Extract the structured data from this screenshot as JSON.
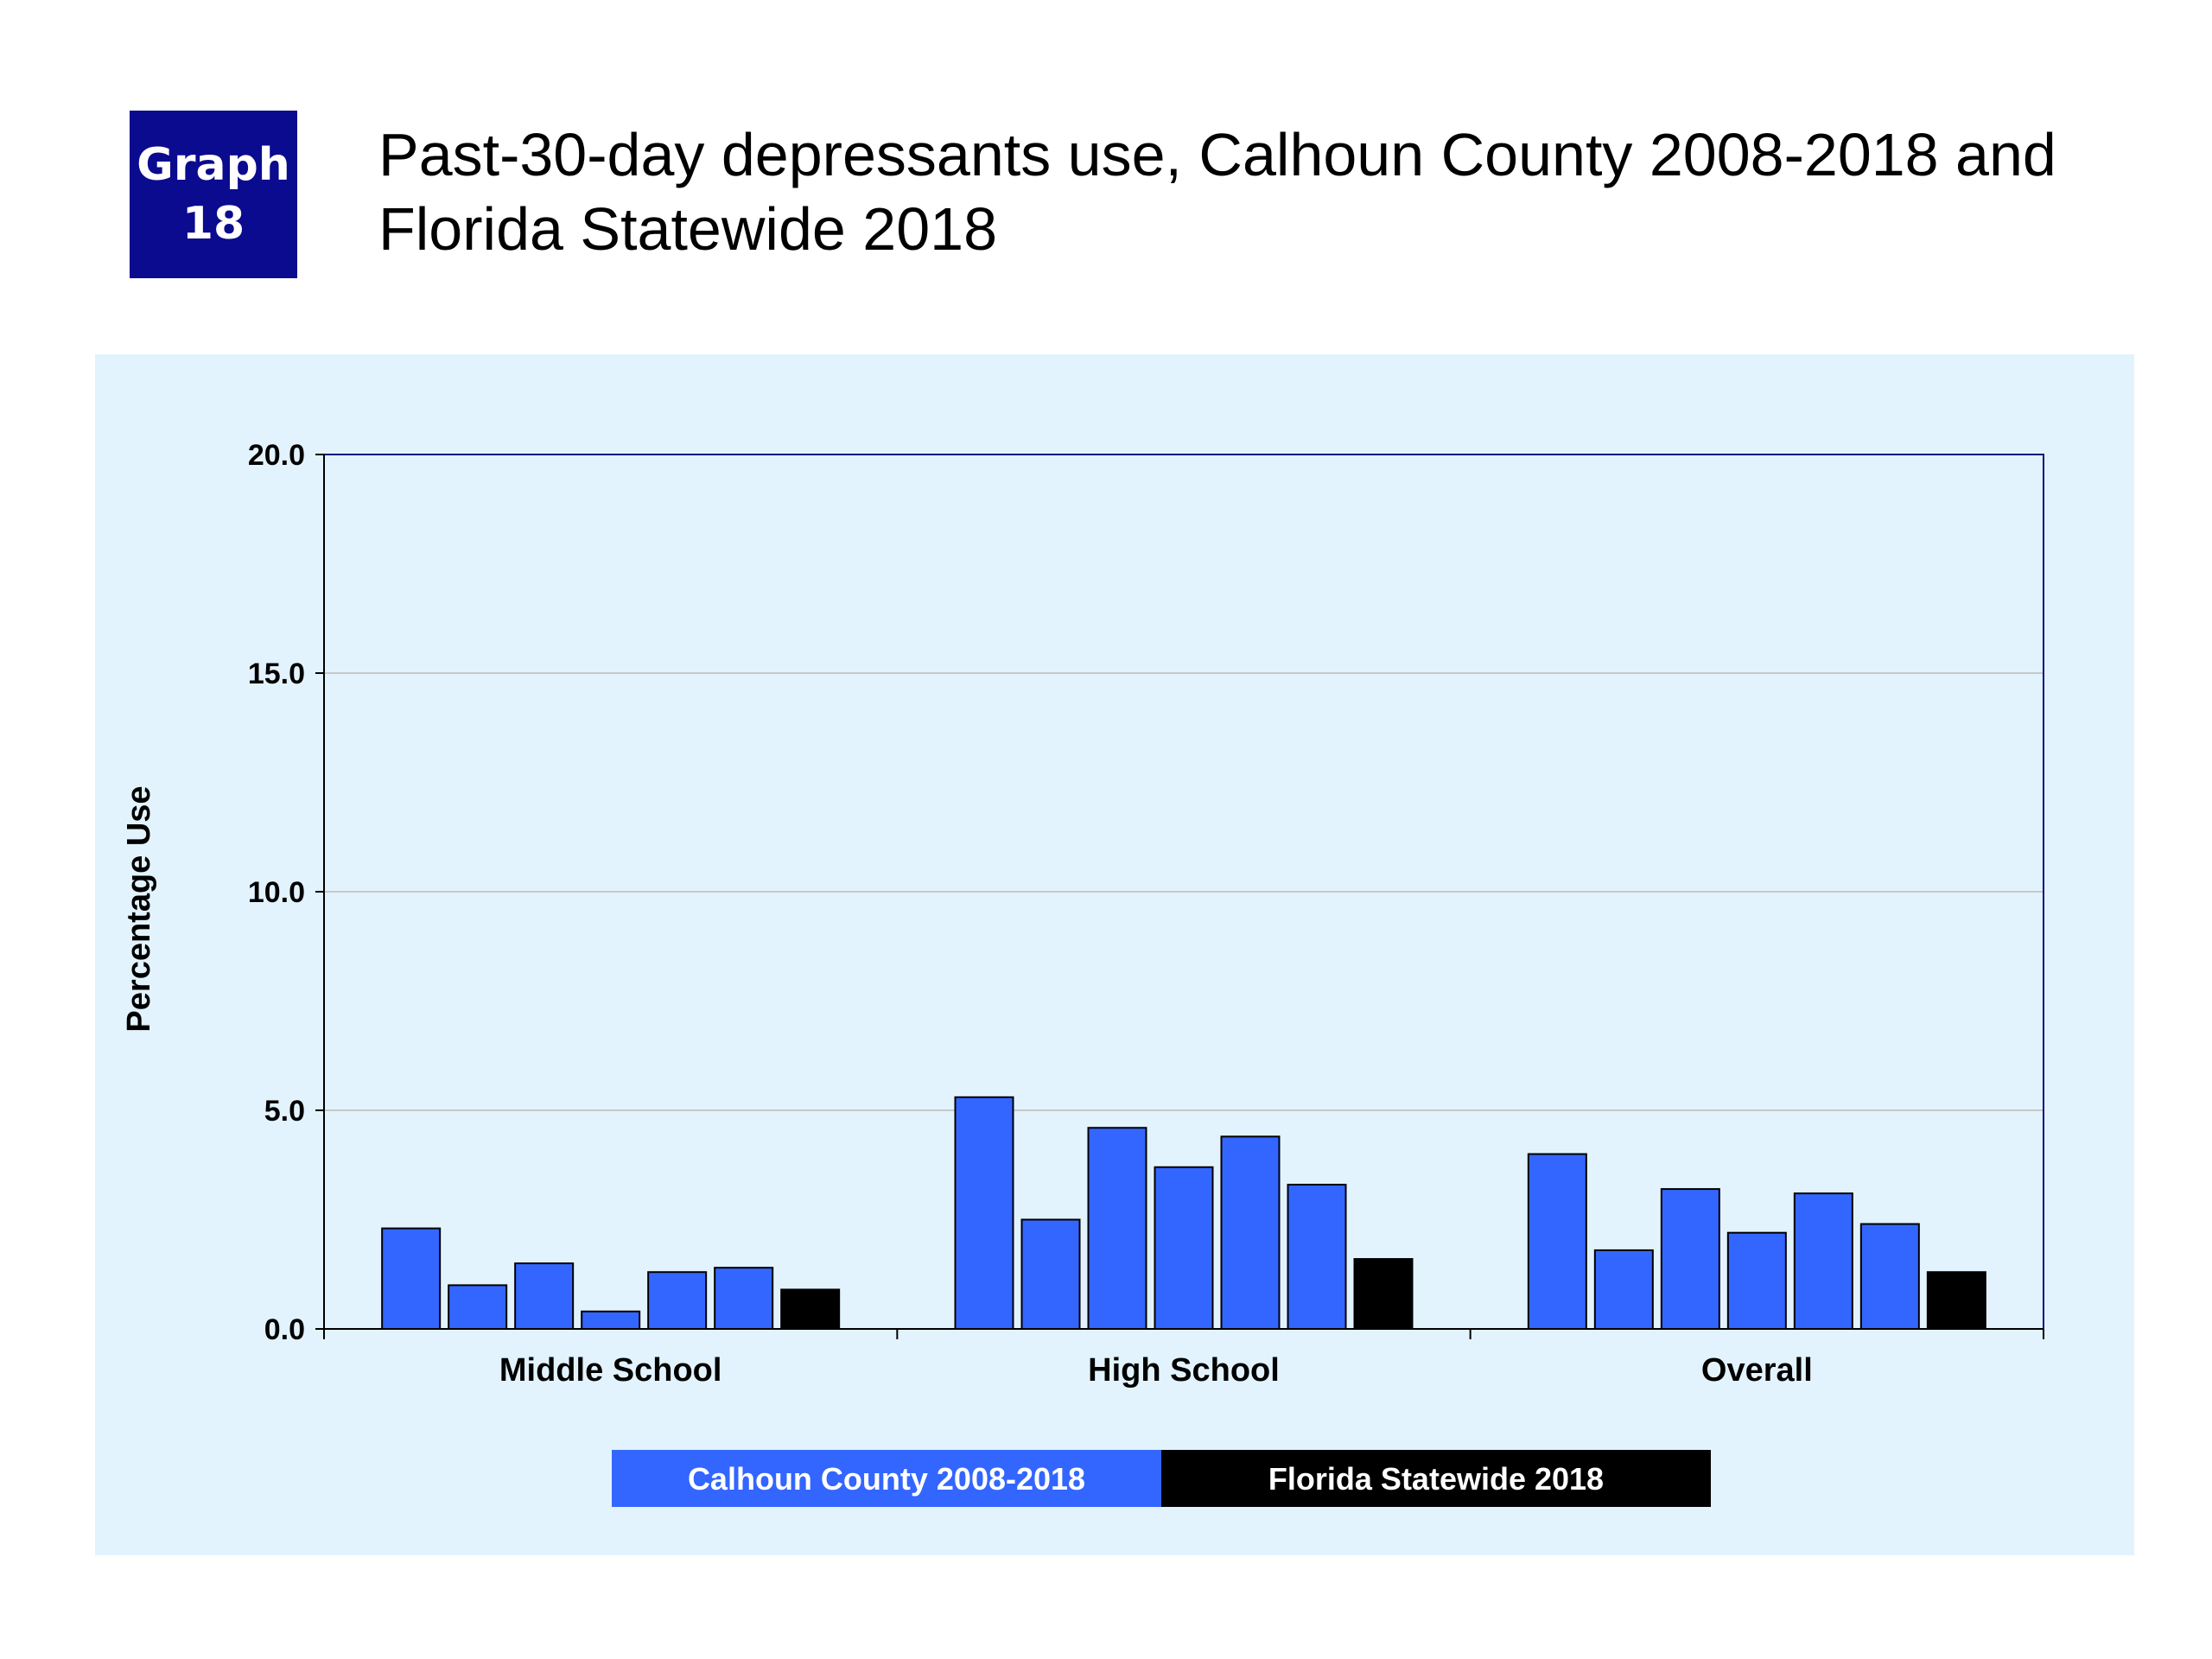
{
  "badge": {
    "line1": "Graph",
    "line2": "18"
  },
  "colors": {
    "badge_bg": "#0b0b8f",
    "panel_bg": "#e2f3fd",
    "plot_frame": "#0a0a80",
    "county_bar": "#3366ff",
    "state_bar": "#000000",
    "gridline": "#c8c8c8"
  },
  "chart_data": {
    "type": "bar",
    "title": "Past-30-day depressants use, Calhoun County 2008-2018 and Florida Statewide 2018",
    "xlabel": "",
    "ylabel": "Percentage Use",
    "ylim": [
      0,
      20
    ],
    "yticks": [
      "0.0",
      "5.0",
      "10.0",
      "15.0",
      "20.0"
    ],
    "grid": true,
    "legend_position": "bottom",
    "legend": [
      "Calhoun County 2008-2018",
      "Florida Statewide 2018"
    ],
    "categories": [
      "Middle School",
      "High School",
      "Overall"
    ],
    "groups": [
      {
        "category": "Middle School",
        "county_values": [
          2.3,
          1.0,
          1.5,
          0.4,
          1.3,
          1.4
        ],
        "state_value": 0.9
      },
      {
        "category": "High School",
        "county_values": [
          5.3,
          2.5,
          4.6,
          3.7,
          4.4,
          3.3
        ],
        "state_value": 1.6
      },
      {
        "category": "Overall",
        "county_values": [
          4.0,
          1.8,
          3.2,
          2.2,
          3.1,
          2.4
        ],
        "state_value": 1.3
      }
    ]
  }
}
